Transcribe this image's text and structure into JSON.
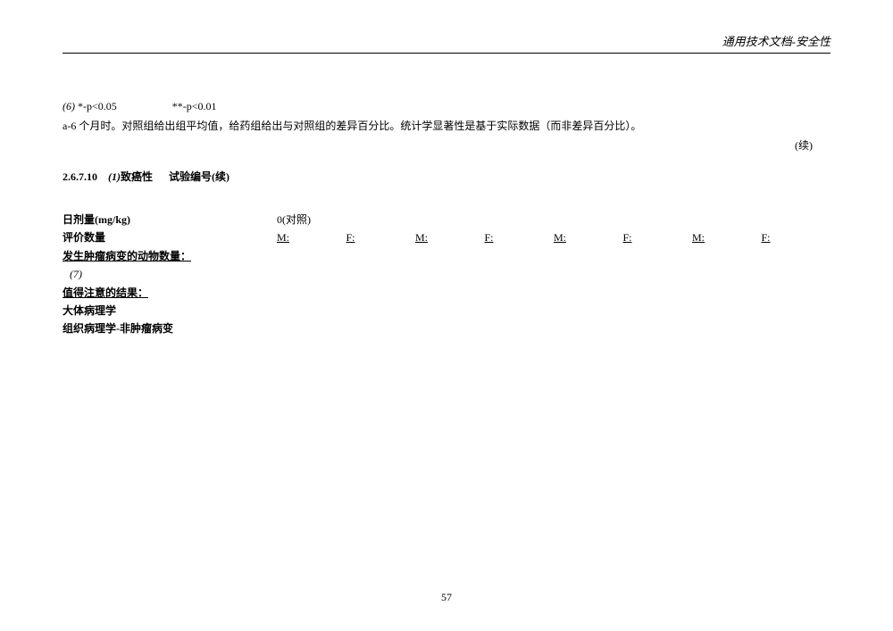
{
  "header": {
    "text": "通用技术文档-安全性"
  },
  "notes": {
    "line1_prefix": "(6)",
    "line1_part1": "*-p<0.05",
    "line1_part2": "**-p<0.01",
    "line2": "a-6 个月时。对照组给出组平均值，给药组给出与对照组的差异百分比。统计学显著性是基于实际数据（而非差异百分比）。"
  },
  "continued": "(续)",
  "section": {
    "number": "2.6.7.10",
    "subnumber": "(1)",
    "title": "致癌性",
    "subtitle": "试验编号(续)"
  },
  "table": {
    "rows": [
      {
        "label": "日剂量(mg/kg)",
        "bold": true,
        "underlined": false,
        "first_cell": "0(对照)"
      },
      {
        "label": "评价数量",
        "bold": true,
        "underlined": false,
        "cells": [
          "M:",
          "F:",
          "M:",
          "F:",
          "M:",
          "F:",
          "M:",
          "F:"
        ]
      },
      {
        "label": "发生肿瘤病变的动物数量：",
        "bold": true,
        "underlined": true
      },
      {
        "label": "(7)",
        "indent": true
      },
      {
        "label": "值得注意的结果：",
        "bold": true,
        "underlined": true
      },
      {
        "label": "大体病理学",
        "bold": true,
        "underlined": false
      },
      {
        "label": "组织病理学-非肿瘤病变",
        "bold": true,
        "underlined": false
      }
    ]
  },
  "pageNumber": "57"
}
